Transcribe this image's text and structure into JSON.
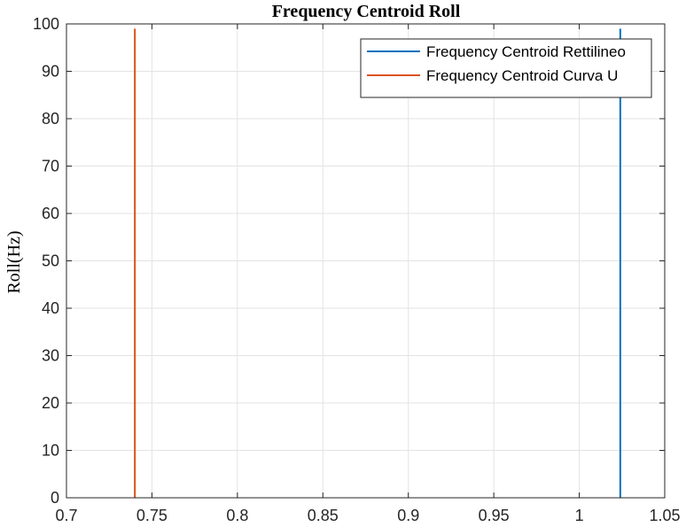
{
  "chart_data": {
    "type": "line",
    "title": "Frequency Centroid Roll",
    "xlabel": "",
    "ylabel": "Roll(Hz)",
    "xlim": [
      0.7,
      1.05
    ],
    "ylim": [
      0,
      100
    ],
    "xticks": [
      0.7,
      0.75,
      0.8,
      0.85,
      0.9,
      0.95,
      1.0,
      1.05
    ],
    "xtick_labels": [
      "0.7",
      "0.75",
      "0.8",
      "0.85",
      "0.9",
      "0.95",
      "1",
      "1.05"
    ],
    "yticks": [
      0,
      10,
      20,
      30,
      40,
      50,
      60,
      70,
      80,
      90,
      100
    ],
    "ytick_labels": [
      "0",
      "10",
      "20",
      "30",
      "40",
      "50",
      "60",
      "70",
      "80",
      "90",
      "100"
    ],
    "grid": true,
    "legend_position": "top-right",
    "series": [
      {
        "name": "Frequency Centroid Rettilineo",
        "color": "#0072BD",
        "x": [
          1.024,
          1.024
        ],
        "y": [
          0,
          99
        ]
      },
      {
        "name": "Frequency Centroid Curva U",
        "color": "#D95319",
        "x": [
          0.74,
          0.74
        ],
        "y": [
          0,
          99
        ]
      }
    ]
  }
}
